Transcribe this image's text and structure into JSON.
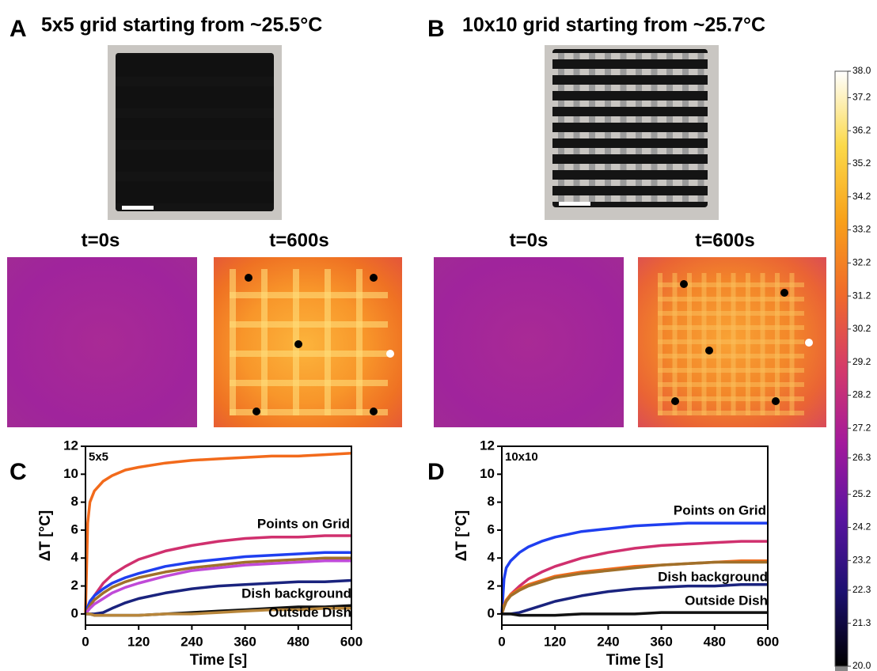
{
  "panels": [
    {
      "label": "A",
      "title": "5x5 grid starting from ~25.5°C",
      "time_labels": [
        "t=0s",
        "t=600s"
      ]
    },
    {
      "label": "B",
      "title": "10x10 grid starting from ~25.7°C",
      "time_labels": [
        "t=0s",
        "t=600s"
      ]
    }
  ],
  "chart_data": [
    {
      "type": "line",
      "panel_label": "C",
      "inset_label": "5x5",
      "xlabel": "Time [s]",
      "ylabel": "ΔT [°C]",
      "annotations": [
        "Points on Grid",
        "Dish background",
        "Outside Dish"
      ],
      "x": [
        0,
        5,
        10,
        20,
        40,
        60,
        90,
        120,
        180,
        240,
        300,
        360,
        420,
        480,
        540,
        600
      ],
      "xlim": [
        0,
        600
      ],
      "xticks": [
        0,
        120,
        240,
        360,
        480,
        600
      ],
      "ylim": [
        -0.8,
        12
      ],
      "yticks": [
        0,
        2,
        4,
        6,
        8,
        10,
        12
      ],
      "series": [
        {
          "color": "#f26a1b",
          "values": [
            0,
            6.5,
            8,
            8.8,
            9.5,
            9.9,
            10.3,
            10.5,
            10.8,
            11,
            11.1,
            11.2,
            11.3,
            11.3,
            11.4,
            11.5
          ]
        },
        {
          "color": "#d0306e",
          "values": [
            0,
            0.4,
            0.8,
            1.3,
            2.2,
            2.8,
            3.4,
            3.9,
            4.5,
            4.9,
            5.2,
            5.4,
            5.5,
            5.5,
            5.6,
            5.6
          ]
        },
        {
          "color": "#1f3ff0",
          "values": [
            0,
            0.5,
            0.9,
            1.3,
            1.8,
            2.2,
            2.6,
            2.9,
            3.4,
            3.7,
            3.9,
            4.1,
            4.2,
            4.3,
            4.4,
            4.4
          ]
        },
        {
          "color": "#a0702a",
          "values": [
            0,
            0.3,
            0.6,
            1,
            1.5,
            1.9,
            2.3,
            2.6,
            3,
            3.3,
            3.5,
            3.7,
            3.8,
            3.9,
            4,
            4
          ]
        },
        {
          "color": "#c04ad8",
          "values": [
            0,
            0.2,
            0.4,
            0.7,
            1.1,
            1.5,
            1.9,
            2.2,
            2.7,
            3.1,
            3.3,
            3.5,
            3.6,
            3.7,
            3.8,
            3.8
          ]
        },
        {
          "color": "#1a237e",
          "values": [
            0,
            0,
            0,
            0,
            0.1,
            0.4,
            0.8,
            1.1,
            1.5,
            1.8,
            2,
            2.1,
            2.2,
            2.3,
            2.3,
            2.4
          ]
        },
        {
          "color": "#111111",
          "values": [
            0,
            0,
            0,
            -0.1,
            -0.1,
            -0.1,
            -0.1,
            -0.1,
            0,
            0.1,
            0.2,
            0.3,
            0.4,
            0.5,
            0.5,
            0.6
          ]
        },
        {
          "color": "#b8863b",
          "values": [
            0,
            0,
            0,
            -0.1,
            -0.1,
            -0.1,
            -0.1,
            -0.1,
            0,
            0,
            0.1,
            0.2,
            0.3,
            0.3,
            0.4,
            0.4
          ]
        }
      ]
    },
    {
      "type": "line",
      "panel_label": "D",
      "inset_label": "10x10",
      "xlabel": "Time [s]",
      "ylabel": "ΔT [°C]",
      "annotations": [
        "Points on Grid",
        "Dish background",
        "Outside Dish"
      ],
      "x": [
        0,
        5,
        10,
        20,
        40,
        60,
        90,
        120,
        180,
        240,
        300,
        360,
        420,
        480,
        540,
        600
      ],
      "xlim": [
        0,
        600
      ],
      "xticks": [
        0,
        120,
        240,
        360,
        480,
        600
      ],
      "ylim": [
        -0.8,
        12
      ],
      "yticks": [
        0,
        2,
        4,
        6,
        8,
        10,
        12
      ],
      "series": [
        {
          "color": "#1f3ff0",
          "values": [
            0,
            2.5,
            3.3,
            3.8,
            4.4,
            4.8,
            5.2,
            5.5,
            5.9,
            6.1,
            6.3,
            6.4,
            6.5,
            6.5,
            6.5,
            6.5
          ]
        },
        {
          "color": "#d0306e",
          "values": [
            0,
            0.5,
            0.9,
            1.4,
            2,
            2.5,
            3,
            3.4,
            4,
            4.4,
            4.7,
            4.9,
            5,
            5.1,
            5.2,
            5.2
          ]
        },
        {
          "color": "#f26a1b",
          "values": [
            0,
            0.6,
            1,
            1.4,
            1.8,
            2.1,
            2.4,
            2.7,
            3,
            3.2,
            3.4,
            3.5,
            3.6,
            3.7,
            3.8,
            3.8
          ]
        },
        {
          "color": "#a0702a",
          "values": [
            0,
            0.5,
            0.9,
            1.3,
            1.7,
            2,
            2.3,
            2.6,
            2.9,
            3.1,
            3.3,
            3.5,
            3.6,
            3.7,
            3.7,
            3.7
          ]
        },
        {
          "color": "#1a237e",
          "values": [
            0,
            0,
            0,
            0,
            0.1,
            0.3,
            0.6,
            0.9,
            1.3,
            1.6,
            1.8,
            1.9,
            2,
            2,
            2.1,
            2.1
          ]
        },
        {
          "color": "#111111",
          "values": [
            0,
            0,
            0,
            0,
            -0.1,
            -0.1,
            -0.1,
            -0.1,
            0,
            0,
            0,
            0.1,
            0.1,
            0.1,
            0.1,
            0.1
          ]
        }
      ]
    },
    {
      "type": "colorbar",
      "colors": [
        "#000000",
        "#1c1070",
        "#5a14a0",
        "#a3199c",
        "#d43a6a",
        "#f06a2a",
        "#f8a11a",
        "#fbd94a",
        "#ffffff"
      ],
      "ylim": [
        20,
        38
      ],
      "yticks": [
        {
          "value": 38,
          "label": "38.0"
        },
        37.2,
        36.2,
        35.2,
        34.2,
        33.2,
        32.2,
        31.2,
        30.2,
        29.2,
        28.2,
        27.2,
        26.3,
        25.2,
        24.2,
        23.2,
        22.3,
        21.3,
        {
          "value": 20,
          "label": "20.0"
        }
      ]
    }
  ]
}
